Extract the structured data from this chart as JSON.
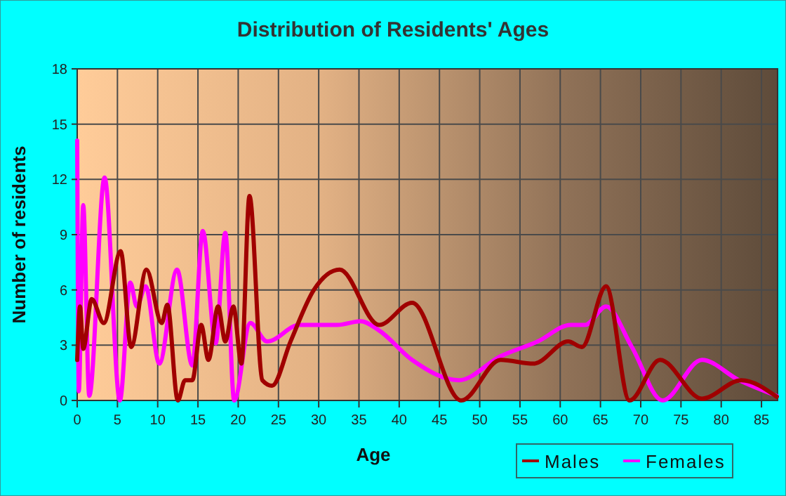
{
  "chart_data": {
    "type": "line",
    "title": "Distribution of Residents' Ages",
    "xlabel": "Age",
    "ylabel": "Number of residents",
    "xlim": [
      0,
      87
    ],
    "xticks": [
      0,
      5,
      10,
      15,
      20,
      25,
      30,
      35,
      40,
      45,
      50,
      55,
      60,
      65,
      70,
      75,
      80,
      85
    ],
    "ylim": [
      0,
      18
    ],
    "yticks": [
      0,
      3,
      6,
      9,
      12,
      15,
      18
    ],
    "grid": true,
    "legend": "bottom right",
    "line_style": "solid",
    "marker": "none",
    "series": [
      {
        "name": "Males",
        "color": "#a00000",
        "x": [
          0,
          0.35,
          0.75,
          1.8,
          3.3,
          5.4,
          6.7,
          8.6,
          10.5,
          11.2,
          12.5,
          13.4,
          14.3,
          15.4,
          16.3,
          17.5,
          18.4,
          19.4,
          20.4,
          21.4,
          23,
          24.2,
          26.5,
          29.4,
          32.6,
          37.5,
          41.6,
          47.7,
          52.6,
          56.7,
          61,
          62.7,
          65.7,
          68.6,
          72.4,
          77.6,
          82.5,
          86.9
        ],
        "values": [
          2.2,
          5.1,
          2.8,
          5.5,
          4.2,
          8.1,
          2.9,
          7.1,
          4.2,
          5.2,
          0,
          1.1,
          1.1,
          4.1,
          2.2,
          5.1,
          3.2,
          5.1,
          2,
          11.1,
          1.1,
          0.8,
          3.2,
          6,
          7.1,
          4.1,
          5.3,
          0,
          2.2,
          2,
          3.2,
          2.9,
          6.2,
          0,
          2.2,
          0.1,
          1.1,
          0.2
        ]
      },
      {
        "name": "Females",
        "color": "#ff00ff",
        "x": [
          0,
          0.2,
          0.75,
          1.5,
          3.4,
          5.3,
          6.6,
          7.4,
          8.5,
          10.2,
          12.4,
          14.3,
          15.6,
          17.2,
          18.4,
          19.5,
          21.5,
          23.6,
          27.6,
          32.3,
          35.2,
          37.5,
          41.6,
          47.4,
          52.6,
          57.2,
          61.3,
          63.1,
          65.7,
          68.9,
          72.7,
          77.6,
          82.2,
          86.9
        ],
        "values": [
          14.1,
          0.5,
          10.6,
          0.25,
          12.1,
          0,
          6.4,
          5.1,
          6.2,
          2,
          7.1,
          1.9,
          9.2,
          3.1,
          9.1,
          0,
          4.2,
          3.2,
          4.1,
          4.1,
          4.3,
          3.8,
          2.2,
          1.1,
          2.4,
          3.2,
          4.1,
          4.1,
          5.1,
          2.9,
          0,
          2.2,
          1.1,
          0.25
        ]
      }
    ]
  }
}
